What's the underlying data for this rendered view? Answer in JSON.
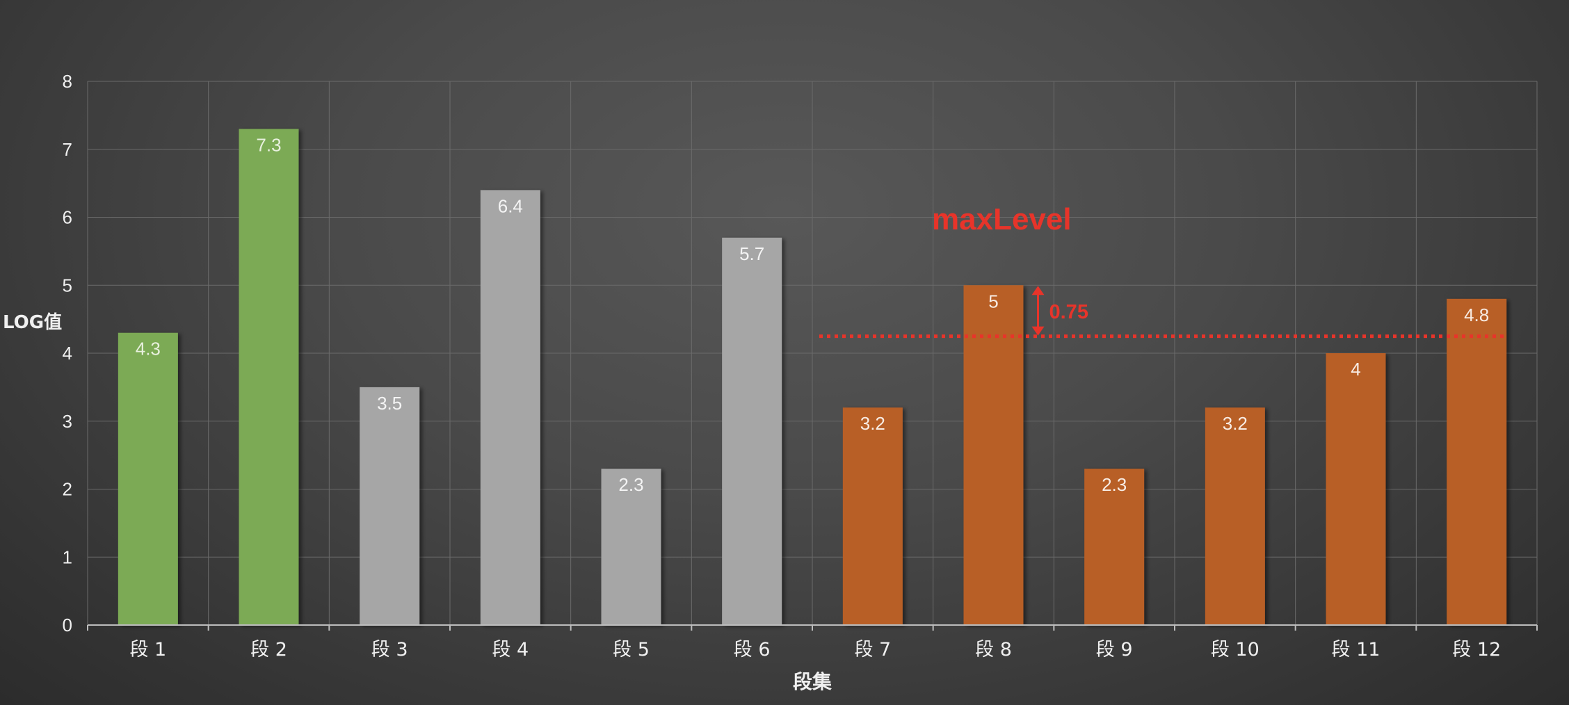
{
  "chart_data": {
    "type": "bar",
    "title": "",
    "xlabel": "段集",
    "ylabel": "LOG值",
    "ylim": [
      0,
      8
    ],
    "yticks": [
      0,
      1,
      2,
      3,
      4,
      5,
      6,
      7,
      8
    ],
    "grid": true,
    "categories": [
      "段 1",
      "段 2",
      "段 3",
      "段 4",
      "段 5",
      "段 6",
      "段 7",
      "段 8",
      "段 9",
      "段 10",
      "段 11",
      "段 12"
    ],
    "values": [
      4.3,
      7.3,
      3.5,
      6.4,
      2.3,
      5.7,
      3.2,
      5,
      2.3,
      3.2,
      4,
      4.8
    ],
    "data_labels": [
      "4.3",
      "7.3",
      "3.5",
      "6.4",
      "2.3",
      "5.7",
      "3.2",
      "5",
      "2.3",
      "3.2",
      "4",
      "4.8"
    ],
    "groups": [
      {
        "from": 0,
        "to": 1,
        "color": "#7BAA55"
      },
      {
        "from": 2,
        "to": 5,
        "color": "#A6A6A6"
      },
      {
        "from": 6,
        "to": 11,
        "color": "#B85F27"
      }
    ],
    "reference_line": {
      "value": 4.25,
      "from_category": 6,
      "to_category": 11,
      "style": "dotted",
      "color": "#E8342A"
    },
    "annotations": [
      {
        "text": "maxLevel",
        "color": "#E8342A"
      },
      {
        "text": "0.75",
        "color": "#E8342A",
        "from_value": 5,
        "to_value": 4.25,
        "category": 7
      }
    ],
    "colors": {
      "grid": "#6b6b6b",
      "axis": "#bdbdbd",
      "tick_text": "#f0f0f0",
      "bar_label_green": "#e8f0de",
      "bar_label_gray": "#f4f4f4",
      "bar_label_orange": "#f8ece4"
    }
  }
}
